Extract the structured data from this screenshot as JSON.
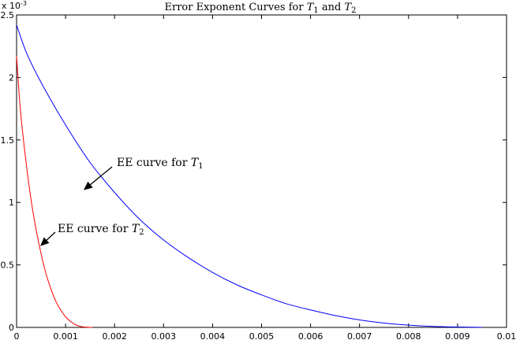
{
  "chart_data": {
    "type": "line",
    "title": {
      "prefix": "Error Exponent Curves for ",
      "var1": "T",
      "sub1": "1",
      "mid": " and ",
      "var2": "T",
      "sub2": "2"
    },
    "xlabel": "",
    "ylabel": "",
    "xlim": [
      0,
      0.01
    ],
    "ylim": [
      0,
      0.0025
    ],
    "y_multiplier_label": "x 10",
    "y_multiplier_exp": "-3",
    "x_ticks": [
      "0",
      "0.001",
      "0.002",
      "0.003",
      "0.004",
      "0.005",
      "0.006",
      "0.007",
      "0.008",
      "0.009",
      "0.01"
    ],
    "x_tick_values": [
      0,
      0.001,
      0.002,
      0.003,
      0.004,
      0.005,
      0.006,
      0.007,
      0.008,
      0.009,
      0.01
    ],
    "y_ticks": [
      "0",
      "0.5",
      "1",
      "1.5",
      "2",
      "2.5"
    ],
    "y_tick_values": [
      0,
      0.0005,
      0.001,
      0.0015,
      0.002,
      0.0025
    ],
    "grid": false,
    "series": [
      {
        "color": "#0000ff",
        "x": [
          0,
          0.0002,
          0.0005,
          0.001,
          0.0015,
          0.002,
          0.0025,
          0.003,
          0.0035,
          0.004,
          0.0045,
          0.005,
          0.0055,
          0.006,
          0.0065,
          0.007,
          0.0075,
          0.008,
          0.0085,
          0.009,
          0.0095
        ],
        "y": [
          0.00242,
          0.0022,
          0.00196,
          0.00162,
          0.00132,
          0.00108,
          0.00087,
          0.0007,
          0.00056,
          0.00044,
          0.00034,
          0.00026,
          0.00019,
          0.00014,
          9.5e-05,
          6e-05,
          3.5e-05,
          1.8e-05,
          8e-06,
          3e-06,
          1e-06
        ]
      },
      {
        "color": "#ff0000",
        "x": [
          0,
          5e-05,
          0.0001,
          0.0002,
          0.0003,
          0.0004,
          0.0005,
          0.0006,
          0.0007,
          0.0008,
          0.0009,
          0.001,
          0.0011,
          0.0012,
          0.0013,
          0.0014,
          0.00155
        ],
        "y": [
          0.00217,
          0.00188,
          0.00165,
          0.0013,
          0.00101,
          0.00078,
          0.00059,
          0.00043,
          0.00031,
          0.00021,
          0.00014,
          8.5e-05,
          4.8e-05,
          2.2e-05,
          8e-06,
          2e-06,
          0.0
        ]
      }
    ],
    "annotations": [
      {
        "prefix": "EE curve for ",
        "var": "T",
        "sub": "1",
        "target_x": 0.00145,
        "target_y": 0.00113
      },
      {
        "prefix": "EE curve for ",
        "var": "T",
        "sub": "2",
        "target_x": 0.0005,
        "target_y": 0.00067
      }
    ]
  }
}
